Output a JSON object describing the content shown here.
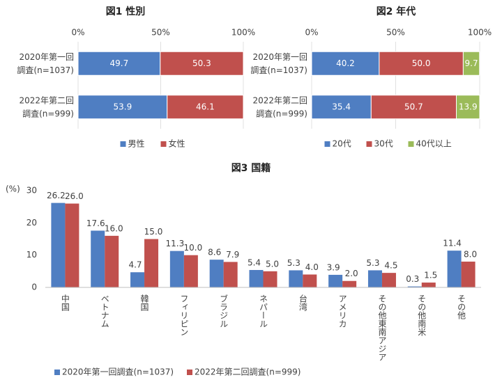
{
  "chart_data": [
    {
      "type": "hbar-stacked",
      "title": "図1  性別",
      "categories": [
        [
          "2020年第一回",
          "調査(n=1037)"
        ],
        [
          "2022年第二回",
          "調査(n=999)"
        ]
      ],
      "series": [
        {
          "name": "男性",
          "color": "#4f7ec2",
          "values": [
            49.7,
            53.9
          ],
          "value_labels": [
            "49.7",
            "53.9"
          ]
        },
        {
          "name": "女性",
          "color": "#c0504d",
          "values": [
            50.3,
            46.1
          ],
          "value_labels": [
            "50.3",
            "46.1"
          ]
        }
      ],
      "xlim": [
        0,
        100
      ],
      "xticks": [
        {
          "value": 0,
          "label": "0%"
        },
        {
          "value": 50,
          "label": "50%"
        },
        {
          "value": 100,
          "label": "100%"
        }
      ],
      "grid": true,
      "legend": "bottom"
    },
    {
      "type": "hbar-stacked",
      "title": "図2  年代",
      "categories": [
        [
          "2020年第一回",
          "調査(n=1037)"
        ],
        [
          "2022年第二回",
          "調査(n=999)"
        ]
      ],
      "series": [
        {
          "name": "20代",
          "color": "#4f7ec2",
          "values": [
            40.2,
            35.4
          ],
          "value_labels": [
            "40.2",
            "35.4"
          ]
        },
        {
          "name": "30代",
          "color": "#c0504d",
          "values": [
            50.0,
            50.7
          ],
          "value_labels": [
            "50.0",
            "50.7"
          ]
        },
        {
          "name": "40代以上",
          "color": "#9bbb59",
          "values": [
            9.7,
            13.9
          ],
          "value_labels": [
            "9.7",
            "13.9"
          ]
        }
      ],
      "xlim": [
        0,
        100
      ],
      "xticks": [
        {
          "value": 0,
          "label": "0%"
        },
        {
          "value": 50,
          "label": "50%"
        },
        {
          "value": 100,
          "label": "100%"
        }
      ],
      "grid": true,
      "legend": "bottom"
    },
    {
      "type": "bar",
      "title": "図3  国籍",
      "y_label": "(%)",
      "categories": [
        "中国",
        "ベトナム",
        "韓国",
        "フィリピン",
        "ブラジル",
        "ネパール",
        "台湾",
        "アメリカ",
        "その他東南アジア",
        "その他南米",
        "その他"
      ],
      "series": [
        {
          "name": "2020年第一回調査(n=1037)",
          "color": "#4f7ec2",
          "values": [
            26.2,
            17.6,
            4.7,
            11.3,
            8.6,
            5.4,
            5.3,
            3.9,
            5.3,
            0.3,
            11.4
          ],
          "value_labels": [
            "26.2",
            "17.6",
            "4.7",
            "11.3",
            "8.6",
            "5.4",
            "5.3",
            "3.9",
            "5.3",
            "0.3",
            "11.4"
          ]
        },
        {
          "name": "2022年第二回調査(n=999)",
          "color": "#c0504d",
          "values": [
            26.0,
            16.0,
            15.0,
            10.0,
            7.9,
            5.0,
            4.0,
            2.0,
            4.5,
            1.5,
            8.0
          ],
          "value_labels": [
            "26.0",
            "16.0",
            "15.0",
            "10.0",
            "7.9",
            "5.0",
            "4.0",
            "2.0",
            "4.5",
            "1.5",
            "8.0"
          ]
        }
      ],
      "ylim": [
        0,
        30
      ],
      "yticks": [
        0,
        10,
        20,
        30
      ],
      "grid": false,
      "legend": "bottom-left"
    }
  ]
}
